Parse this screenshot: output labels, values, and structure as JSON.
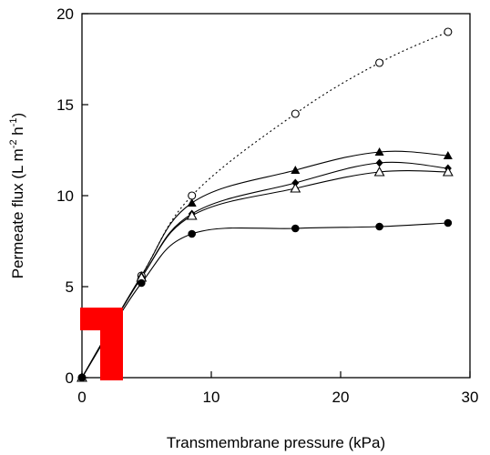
{
  "chart_data": {
    "type": "scatter",
    "title": "",
    "xlabel": "Transmembrane pressure (kPa)",
    "ylabel_parts": [
      "Permeate flux (L m",
      "-2",
      " h",
      "-1",
      ")"
    ],
    "xlim": [
      0,
      30
    ],
    "ylim": [
      0,
      20
    ],
    "xticks": [
      0,
      10,
      20,
      30
    ],
    "yticks": [
      0,
      5,
      10,
      15,
      20
    ],
    "grid": false,
    "legend": "none",
    "series": [
      {
        "marker": "open-circle",
        "line": "dotted",
        "x": [
          0,
          4.6,
          8.5,
          16.5,
          23,
          28.3
        ],
        "y": [
          0,
          5.6,
          10.0,
          14.5,
          17.3,
          19.0
        ]
      },
      {
        "marker": "filled-triangle",
        "line": "solid",
        "x": [
          0,
          4.6,
          8.5,
          16.5,
          23,
          28.3
        ],
        "y": [
          0,
          5.6,
          9.6,
          11.4,
          12.4,
          12.2
        ]
      },
      {
        "marker": "filled-diamond",
        "line": "solid",
        "x": [
          0,
          4.6,
          8.5,
          16.5,
          23,
          28.3
        ],
        "y": [
          0,
          5.5,
          9.0,
          10.7,
          11.8,
          11.5
        ]
      },
      {
        "marker": "open-triangle",
        "line": "solid",
        "x": [
          0,
          4.6,
          8.5,
          16.5,
          23,
          28.3
        ],
        "y": [
          0,
          5.5,
          8.9,
          10.4,
          11.3,
          11.3
        ]
      },
      {
        "marker": "filled-circle",
        "line": "solid",
        "x": [
          0,
          4.6,
          8.5,
          16.5,
          23,
          28.3
        ],
        "y": [
          0,
          5.2,
          7.9,
          8.2,
          8.3,
          8.5
        ]
      }
    ],
    "overlay_color": "#ff0000"
  }
}
